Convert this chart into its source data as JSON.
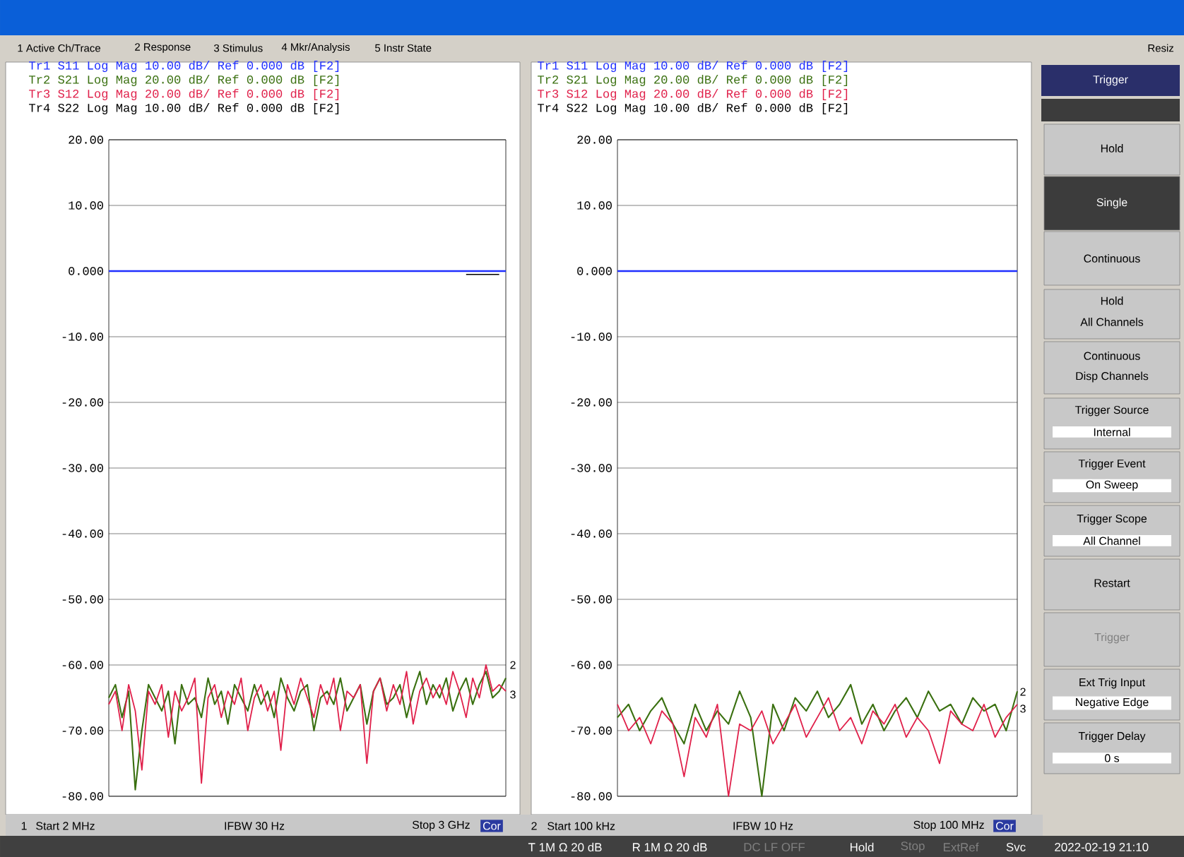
{
  "chart_data": [
    {
      "type": "line",
      "grid": "y",
      "tick_labels": "y",
      "categories": [
        null,
        null,
        null,
        null,
        null,
        null,
        null,
        null,
        null,
        null,
        null,
        null,
        null,
        null,
        null,
        null,
        null,
        null,
        null,
        null,
        null,
        null,
        null,
        null,
        null,
        null,
        null,
        null,
        null,
        null,
        null,
        null,
        null,
        null,
        null,
        null,
        null,
        null,
        null,
        null,
        null,
        null,
        null,
        null,
        null,
        null,
        null,
        null,
        null,
        null,
        null,
        null,
        null,
        null,
        null,
        null,
        null,
        null,
        null,
        null,
        null
      ],
      "ylim": [
        -80,
        20
      ],
      "yticks": [
        {
          "value": -80,
          "label": "-80.00"
        },
        {
          "value": -70,
          "label": "-70.00"
        },
        {
          "value": -60,
          "label": "-60.00"
        },
        {
          "value": -50,
          "label": "-50.00"
        },
        {
          "value": -40,
          "label": "-40.00"
        },
        {
          "value": -30,
          "label": "-30.00"
        },
        {
          "value": -20,
          "label": "-20.00"
        },
        {
          "value": -10,
          "label": "-10.00"
        },
        {
          "value": 0,
          "label": "0.000"
        },
        {
          "value": 10,
          "label": "10.00"
        },
        {
          "value": 20,
          "label": "20.00"
        }
      ],
      "series": [
        {
          "name": "Tr1 S11 Log Mag 10.00 dB/ Ref 0.000 dB [F2]",
          "color": "#1f2fff",
          "values": [
            0,
            0,
            0,
            0,
            0,
            0,
            0,
            0,
            0,
            0,
            0,
            0,
            0,
            0,
            0,
            0,
            0,
            0,
            0,
            0,
            0,
            0,
            0,
            0,
            0,
            0,
            0,
            0,
            0,
            0,
            0,
            0,
            0,
            0,
            0,
            0,
            0,
            0,
            0,
            0,
            0,
            0,
            0,
            0,
            0,
            0,
            0,
            0,
            0,
            0,
            0,
            0,
            0,
            0,
            0,
            0,
            0,
            0,
            0,
            0,
            0
          ]
        },
        {
          "name": "Tr2 S21 Log Mag 20.00 dB/ Ref 0.000 dB [F2]",
          "color": "#3a7010",
          "values": [
            -65,
            -63,
            -68,
            -64,
            -79,
            -70,
            -63,
            -65,
            -67,
            -64,
            -72,
            -63,
            -66,
            -65,
            -68,
            -62,
            -66,
            -64,
            -69,
            -63,
            -65,
            -67,
            -63,
            -66,
            -64,
            -68,
            -62,
            -65,
            -67,
            -64,
            -63,
            -70,
            -65,
            -64,
            -66,
            -62,
            -67,
            -65,
            -63,
            -69,
            -64,
            -62,
            -66,
            -65,
            -63,
            -68,
            -64,
            -61,
            -66,
            -63,
            -65,
            -62,
            -67,
            -64,
            -62,
            -66,
            -63,
            -61,
            -65,
            -64,
            -62
          ]
        },
        {
          "name": "Tr3 S12 Log Mag 20.00 dB/ Ref 0.000 dB [F2]",
          "color": "#e0204a",
          "values": [
            -66,
            -64,
            -70,
            -63,
            -67,
            -76,
            -64,
            -66,
            -63,
            -71,
            -64,
            -67,
            -65,
            -62,
            -78,
            -65,
            -63,
            -68,
            -64,
            -66,
            -62,
            -70,
            -65,
            -63,
            -67,
            -64,
            -73,
            -63,
            -66,
            -62,
            -65,
            -68,
            -63,
            -66,
            -62,
            -70,
            -64,
            -65,
            -63,
            -75,
            -64,
            -62,
            -67,
            -63,
            -66,
            -61,
            -69,
            -64,
            -62,
            -65,
            -63,
            -66,
            -61,
            -64,
            -68,
            -62,
            -65,
            -60,
            -64,
            -63,
            -64
          ]
        },
        {
          "name": "Tr4 S22 Log Mag 10.00 dB/ Ref 0.000 dB [F2]",
          "color": "#000000",
          "values": [
            null,
            null,
            null,
            null,
            null,
            null,
            null,
            null,
            null,
            null,
            null,
            null,
            null,
            null,
            null,
            null,
            null,
            null,
            null,
            null,
            null,
            null,
            null,
            null,
            null,
            null,
            null,
            null,
            null,
            null,
            null,
            null,
            null,
            null,
            null,
            null,
            null,
            null,
            null,
            null,
            null,
            null,
            null,
            null,
            null,
            null,
            null,
            null,
            null,
            null,
            null,
            null,
            null,
            null,
            -0.5,
            -0.5,
            -0.5,
            -0.5,
            -0.5,
            -0.5,
            null
          ]
        }
      ],
      "annotations": [
        "1",
        "Start 2 MHz",
        "IFBW 30 Hz",
        "Stop 3 GHz",
        "Cor",
        "2",
        "3"
      ]
    },
    {
      "type": "line",
      "grid": "y",
      "tick_labels": "y",
      "categories": [
        null,
        null,
        null,
        null,
        null,
        null,
        null,
        null,
        null,
        null,
        null,
        null,
        null,
        null,
        null,
        null,
        null,
        null,
        null,
        null,
        null,
        null,
        null,
        null,
        null,
        null,
        null,
        null,
        null,
        null,
        null,
        null,
        null,
        null,
        null,
        null,
        null
      ],
      "ylim": [
        -80,
        20
      ],
      "yticks": [
        {
          "value": -80,
          "label": "-80.00"
        },
        {
          "value": -70,
          "label": "-70.00"
        },
        {
          "value": -60,
          "label": "-60.00"
        },
        {
          "value": -50,
          "label": "-50.00"
        },
        {
          "value": -40,
          "label": "-40.00"
        },
        {
          "value": -30,
          "label": "-30.00"
        },
        {
          "value": -20,
          "label": "-20.00"
        },
        {
          "value": -10,
          "label": "-10.00"
        },
        {
          "value": 0,
          "label": "0.000"
        },
        {
          "value": 10,
          "label": "10.00"
        },
        {
          "value": 20,
          "label": "20.00"
        }
      ],
      "series": [
        {
          "name": "Tr1 S11 Log Mag 10.00 dB/ Ref 0.000 dB [F2]",
          "color": "#1f2fff",
          "values": [
            0,
            0,
            0,
            0,
            0,
            0,
            0,
            0,
            0,
            0,
            0,
            0,
            0,
            0,
            0,
            0,
            0,
            0,
            0,
            0,
            0,
            0,
            0,
            0,
            0,
            0,
            0,
            0,
            0,
            0,
            0,
            0,
            0,
            0,
            0,
            0,
            0
          ]
        },
        {
          "name": "Tr2 S21 Log Mag 20.00 dB/ Ref 0.000 dB [F2]",
          "color": "#3a7010",
          "values": [
            -68,
            -66,
            -70,
            -67,
            -65,
            -69,
            -72,
            -66,
            -70,
            -67,
            -69,
            -64,
            -68,
            -80,
            -66,
            -70,
            -65,
            -67,
            -64,
            -68,
            -66,
            -63,
            -69,
            -66,
            -70,
            -67,
            -65,
            -68,
            -64,
            -67,
            -66,
            -69,
            -65,
            -67,
            -66,
            -70,
            -64
          ]
        },
        {
          "name": "Tr3 S12 Log Mag 20.00 dB/ Ref 0.000 dB [F2]",
          "color": "#e0204a",
          "values": [
            -66,
            -70,
            -68,
            -72,
            -67,
            -69,
            -77,
            -68,
            -71,
            -66,
            -80,
            -69,
            -70,
            -67,
            -72,
            -69,
            -66,
            -71,
            -68,
            -65,
            -70,
            -68,
            -72,
            -67,
            -69,
            -66,
            -71,
            -68,
            -70,
            -75,
            -67,
            -69,
            -70,
            -66,
            -71,
            -68,
            -66
          ]
        },
        {
          "name": "Tr4 S22 Log Mag 10.00 dB/ Ref 0.000 dB [F2]",
          "color": "#000000",
          "values": [
            null,
            null,
            null,
            null,
            null,
            null,
            null,
            null,
            null,
            null,
            null,
            null,
            null,
            null,
            null,
            null,
            null,
            null,
            null,
            null,
            null,
            null,
            null,
            null,
            null,
            null,
            null,
            null,
            null,
            null,
            null,
            null,
            null,
            null,
            null,
            null,
            null
          ]
        }
      ],
      "annotations": [
        "2",
        "Start 100 kHz",
        "IFBW 10 Hz",
        "Stop 100 MHz",
        "Cor",
        "2",
        "3"
      ]
    },
    {
      "type": "other",
      "title": "Trigger",
      "annotations": [
        "Hold",
        "Single",
        "Continuous",
        "Hold",
        "All Channels",
        "Continuous",
        "Disp Channels",
        "Trigger Source",
        "Internal",
        "Trigger Event",
        "On Sweep",
        "Trigger Scope",
        "All Channel",
        "Restart",
        "Trigger",
        "Ext Trig Input",
        "Negative Edge",
        "Trigger Delay",
        "0 s",
        "1 Active Ch/Trace",
        "2 Response",
        "3 Stimulus",
        "4 Mkr/Analysis",
        "5 Instr State",
        "Resiz",
        "T 1M Ω 20 dB",
        "R 1M Ω 20 dB",
        "DC LF OFF",
        "Hold",
        "Stop",
        "ExtRef",
        "Svc",
        "2022-02-19 21:10"
      ]
    }
  ]
}
